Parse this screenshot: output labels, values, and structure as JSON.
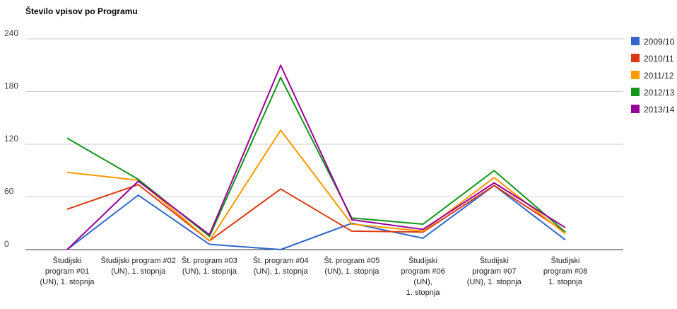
{
  "chart_data": {
    "type": "line",
    "title": "Število vpisov po Programu",
    "xlabel": "",
    "ylabel": "",
    "ylim": [
      0,
      240
    ],
    "yticks": [
      "0",
      "60",
      "120",
      "180",
      "240"
    ],
    "grid": true,
    "legend_position": "right",
    "categories": [
      [
        "Študijski",
        "program #01",
        "(UN), 1. stopnja"
      ],
      [
        "Študijski program #02",
        "(UN), 1. stopnja"
      ],
      [
        "Št. program #03",
        "(UN), 1. stopnja"
      ],
      [
        "Št. program #04",
        "(UN), 1. stopnja"
      ],
      [
        "Št. program #05",
        "(UN), 1. stopnja"
      ],
      [
        "Študijski",
        "program #06",
        "(UN),",
        "1. stopnja"
      ],
      [
        "Študijski",
        "program #07",
        "(UN), 1. stopnja"
      ],
      [
        "Študijski",
        "program #08",
        "1. stopnja"
      ]
    ],
    "series": [
      {
        "name": "2009/10",
        "color": "#3366cc",
        "values": [
          0,
          62,
          6,
          0,
          30,
          13,
          73,
          11
        ]
      },
      {
        "name": "2010/11",
        "color": "#dc3912",
        "values": [
          46,
          74,
          10,
          69,
          21,
          20,
          73,
          20
        ]
      },
      {
        "name": "2011/12",
        "color": "#ff9900",
        "values": [
          88,
          79,
          10,
          136,
          29,
          21,
          82,
          18
        ]
      },
      {
        "name": "2012/13",
        "color": "#109618",
        "values": [
          127,
          80,
          15,
          196,
          36,
          29,
          90,
          20
        ]
      },
      {
        "name": "2013/14",
        "color": "#990099",
        "values": [
          0,
          78,
          17,
          210,
          34,
          23,
          76,
          25
        ]
      }
    ]
  }
}
